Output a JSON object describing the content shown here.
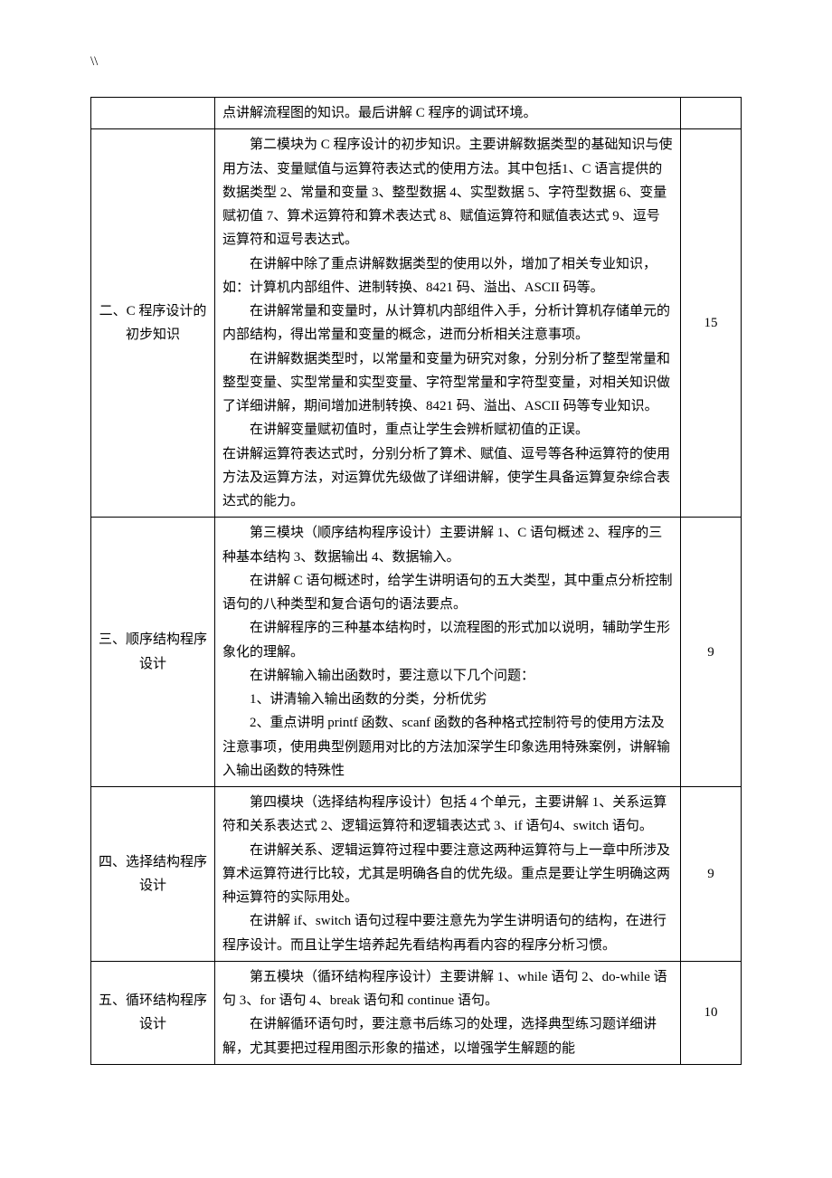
{
  "header_mark": "\\\\",
  "rows": [
    {
      "title": "",
      "paragraphs": [
        {
          "cls": "noindent",
          "text": "点讲解流程图的知识。最后讲解 C 程序的调试环境。"
        }
      ],
      "hours": ""
    },
    {
      "title": "二、C 程序设计的初步知识",
      "paragraphs": [
        {
          "cls": "indent",
          "text": "第二模块为 C 程序设计的初步知识。主要讲解数据类型的基础知识与使用方法、变量赋值与运算符表达式的使用方法。其中包括1、C 语言提供的数据类型 2、常量和变量 3、整型数据 4、实型数据 5、字符型数据 6、变量赋初值 7、算术运算符和算术表达式 8、赋值运算符和赋值表达式 9、逗号运算符和逗号表达式。"
        },
        {
          "cls": "indent",
          "text": "在讲解中除了重点讲解数据类型的使用以外，增加了相关专业知识，如：计算机内部组件、进制转换、8421 码、溢出、ASCII 码等。"
        },
        {
          "cls": "indent",
          "text": "在讲解常量和变量时，从计算机内部组件入手，分析计算机存储单元的内部结构，得出常量和变量的概念，进而分析相关注意事项。"
        },
        {
          "cls": "indent",
          "text": "在讲解数据类型时，以常量和变量为研究对象，分别分析了整型常量和整型变量、实型常量和实型变量、字符型常量和字符型变量，对相关知识做了详细讲解，期间增加进制转换、8421 码、溢出、ASCII 码等专业知识。"
        },
        {
          "cls": "indent",
          "text": "在讲解变量赋初值时，重点让学生会辨析赋初值的正误。"
        },
        {
          "cls": "noindent",
          "text": "在讲解运算符表达式时，分别分析了算术、赋值、逗号等各种运算符的使用方法及运算方法，对运算优先级做了详细讲解，使学生具备运算复杂综合表达式的能力。"
        }
      ],
      "hours": "15"
    },
    {
      "title": "三、顺序结构程序设计",
      "paragraphs": [
        {
          "cls": "indent",
          "text": "第三模块（顺序结构程序设计）主要讲解 1、C 语句概述 2、程序的三种基本结构 3、数据输出 4、数据输入。"
        },
        {
          "cls": "indent",
          "text": "在讲解 C 语句概述时，给学生讲明语句的五大类型，其中重点分析控制语句的八种类型和复合语句的语法要点。"
        },
        {
          "cls": "indent",
          "text": "在讲解程序的三种基本结构时，以流程图的形式加以说明，辅助学生形象化的理解。"
        },
        {
          "cls": "indent",
          "text": "在讲解输入输出函数时，要注意以下几个问题："
        },
        {
          "cls": "indent",
          "text": "1、讲清输入输出函数的分类，分析优劣"
        },
        {
          "cls": "indent",
          "text": "2、重点讲明 printf 函数、scanf 函数的各种格式控制符号的使用方法及注意事项，使用典型例题用对比的方法加深学生印象选用特殊案例，讲解输入输出函数的特殊性"
        }
      ],
      "hours": "9"
    },
    {
      "title": "四、选择结构程序设计",
      "paragraphs": [
        {
          "cls": "indent",
          "text": "第四模块（选择结构程序设计）包括 4 个单元，主要讲解 1、关系运算符和关系表达式 2、逻辑运算符和逻辑表达式 3、if 语句4、switch 语句。"
        },
        {
          "cls": "indent",
          "text": "在讲解关系、逻辑运算符过程中要注意这两种运算符与上一章中所涉及算术运算符进行比较，尤其是明确各自的优先级。重点是要让学生明确这两种运算符的实际用处。"
        },
        {
          "cls": "indent",
          "text": "在讲解 if、switch 语句过程中要注意先为学生讲明语句的结构，在进行程序设计。而且让学生培养起先看结构再看内容的程序分析习惯。"
        }
      ],
      "hours": "9"
    },
    {
      "title": "五、循环结构程序设计",
      "paragraphs": [
        {
          "cls": "indent",
          "text": "第五模块（循环结构程序设计）主要讲解 1、while 语句 2、do-while 语句 3、for 语句 4、break 语句和 continue 语句。"
        },
        {
          "cls": "indent",
          "text": "在讲解循环语句时，要注意书后练习的处理，选择典型练习题详细讲解，尤其要把过程用图示形象的描述，以增强学生解题的能"
        }
      ],
      "hours": "10"
    }
  ]
}
